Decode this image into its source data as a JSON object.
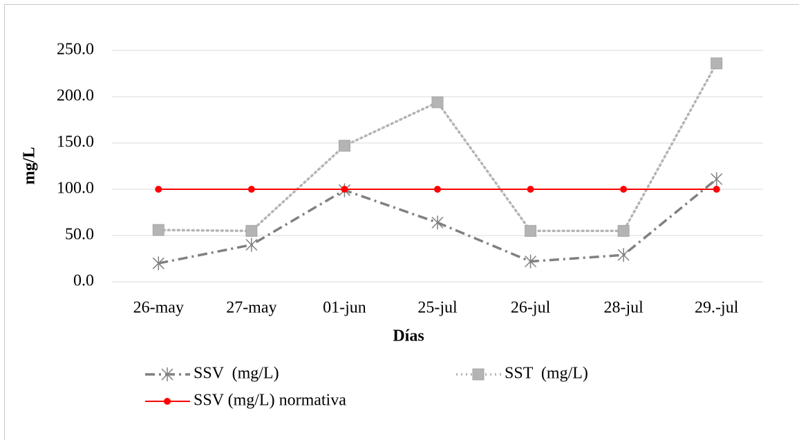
{
  "chart_data": {
    "type": "line",
    "x_label": "Días",
    "y_label": "mg/L",
    "categories": [
      "26-may",
      "27-may",
      "01-jun",
      "25-jul",
      "26-jul",
      "28-jul",
      "29.-jul"
    ],
    "series": [
      {
        "name": "SSV  (mg/L)",
        "color": "#808080",
        "line_style": "dashdot",
        "marker": "asterisk",
        "values": [
          20,
          40,
          99,
          64,
          22,
          29,
          111
        ]
      },
      {
        "name": "SST  (mg/L)",
        "color": "#b4b4b4",
        "line_style": "dotted",
        "marker": "square",
        "values": [
          56,
          55,
          147,
          194,
          55,
          55,
          236
        ]
      },
      {
        "name": "SSV (mg/L) normativa",
        "color": "#ff0000",
        "line_style": "solid",
        "marker": "circle",
        "values": [
          100,
          100,
          100,
          100,
          100,
          100,
          100
        ]
      }
    ],
    "ylim": [
      0,
      250
    ],
    "yticks": [
      {
        "value": 0,
        "label": "0.0"
      },
      {
        "value": 50,
        "label": "50.0"
      },
      {
        "value": 100,
        "label": "100.0"
      },
      {
        "value": 150,
        "label": "150.0"
      },
      {
        "value": 200,
        "label": "200.0"
      },
      {
        "value": 250,
        "label": "250.0"
      }
    ],
    "grid": true,
    "legend": "bottom"
  }
}
